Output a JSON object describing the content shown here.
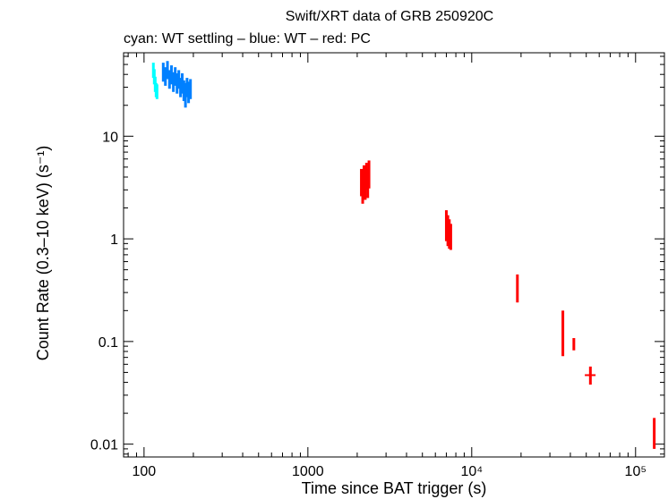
{
  "chart_data": {
    "type": "scatter",
    "title": "Swift/XRT data of GRB 250920C",
    "subtitle": "cyan: WT settling – blue: WT – red: PC",
    "xlabel": "Time since BAT trigger (s)",
    "ylabel": "Count Rate (0.3–10 keV) (s⁻¹)",
    "x_scale": "log",
    "y_scale": "log",
    "xlim": [
      75,
      150000
    ],
    "ylim": [
      0.0075,
      65
    ],
    "x_ticks": [
      {
        "value": 100,
        "label": "100"
      },
      {
        "value": 1000,
        "label": "1000"
      },
      {
        "value": 10000,
        "label": "10⁴"
      },
      {
        "value": 100000,
        "label": "10⁵"
      }
    ],
    "y_ticks": [
      {
        "value": 0.01,
        "label": "0.01"
      },
      {
        "value": 0.1,
        "label": "0.1"
      },
      {
        "value": 1,
        "label": "1"
      },
      {
        "value": 10,
        "label": "10"
      }
    ],
    "grid": false,
    "series": [
      {
        "color": "#00ffff",
        "points": [
          {
            "x": 114,
            "y": 44,
            "ylo": 37,
            "yhi": 52
          },
          {
            "x": 115.5,
            "y": 38,
            "ylo": 32,
            "yhi": 45
          },
          {
            "x": 117,
            "y": 32,
            "ylo": 27,
            "yhi": 38
          },
          {
            "x": 118.5,
            "y": 28,
            "ylo": 24,
            "yhi": 33
          },
          {
            "x": 120,
            "y": 27,
            "ylo": 23,
            "yhi": 32
          }
        ]
      },
      {
        "color": "#0080ff",
        "points": [
          {
            "x": 131,
            "y": 42,
            "ylo": 34,
            "yhi": 52
          },
          {
            "x": 135,
            "y": 38,
            "ylo": 31,
            "yhi": 47
          },
          {
            "x": 139,
            "y": 44,
            "ylo": 36,
            "yhi": 54
          },
          {
            "x": 143,
            "y": 36,
            "ylo": 29,
            "yhi": 44
          },
          {
            "x": 147,
            "y": 40,
            "ylo": 32,
            "yhi": 49
          },
          {
            "x": 151,
            "y": 34,
            "ylo": 27,
            "yhi": 42
          },
          {
            "x": 155,
            "y": 38,
            "ylo": 31,
            "yhi": 47
          },
          {
            "x": 159,
            "y": 33,
            "ylo": 26,
            "yhi": 41
          },
          {
            "x": 163,
            "y": 36,
            "ylo": 29,
            "yhi": 44
          },
          {
            "x": 167,
            "y": 30,
            "ylo": 24,
            "yhi": 37
          },
          {
            "x": 171,
            "y": 33,
            "ylo": 26,
            "yhi": 41
          },
          {
            "x": 175,
            "y": 28,
            "ylo": 22,
            "yhi": 35
          },
          {
            "x": 179,
            "y": 26,
            "ylo": 19,
            "yhi": 33
          },
          {
            "x": 183,
            "y": 30,
            "ylo": 24,
            "yhi": 37
          },
          {
            "x": 187,
            "y": 27,
            "ylo": 21,
            "yhi": 34
          },
          {
            "x": 192,
            "y": 29,
            "ylo": 23,
            "yhi": 36
          }
        ]
      },
      {
        "color": "#ff0000",
        "points": [
          {
            "x": 2120,
            "y": 3.6,
            "ylo": 2.6,
            "yhi": 4.8
          },
          {
            "x": 2160,
            "y": 3.2,
            "ylo": 2.2,
            "yhi": 4.4
          },
          {
            "x": 2200,
            "y": 3.9,
            "ylo": 2.9,
            "yhi": 5.2
          },
          {
            "x": 2240,
            "y": 3.4,
            "ylo": 2.4,
            "yhi": 4.6
          },
          {
            "x": 2280,
            "y": 4.1,
            "ylo": 3.0,
            "yhi": 5.5
          },
          {
            "x": 2320,
            "y": 3.5,
            "ylo": 2.5,
            "yhi": 4.8
          },
          {
            "x": 2360,
            "y": 4.3,
            "ylo": 3.1,
            "yhi": 5.8
          },
          {
            "x": 7000,
            "y": 1.35,
            "ylo": 0.95,
            "yhi": 1.9
          },
          {
            "x": 7150,
            "y": 1.2,
            "ylo": 0.85,
            "yhi": 1.7
          },
          {
            "x": 7300,
            "y": 1.1,
            "ylo": 0.8,
            "yhi": 1.55
          },
          {
            "x": 7450,
            "y": 1.05,
            "ylo": 0.78,
            "yhi": 1.4
          },
          {
            "x": 19000,
            "y": 0.33,
            "ylo": 0.24,
            "yhi": 0.45
          },
          {
            "x": 36000,
            "y": 0.11,
            "ylo": 0.072,
            "yhi": 0.2
          },
          {
            "x": 42000,
            "y": 0.095,
            "ylo": 0.082,
            "yhi": 0.108
          },
          {
            "x": 53000,
            "y": 0.047,
            "ylo": 0.038,
            "yhi": 0.057,
            "xlo": 49000,
            "xhi": 57000
          },
          {
            "x": 130000,
            "y": 0.0135,
            "ylo": 0.009,
            "yhi": 0.018
          }
        ]
      }
    ]
  }
}
